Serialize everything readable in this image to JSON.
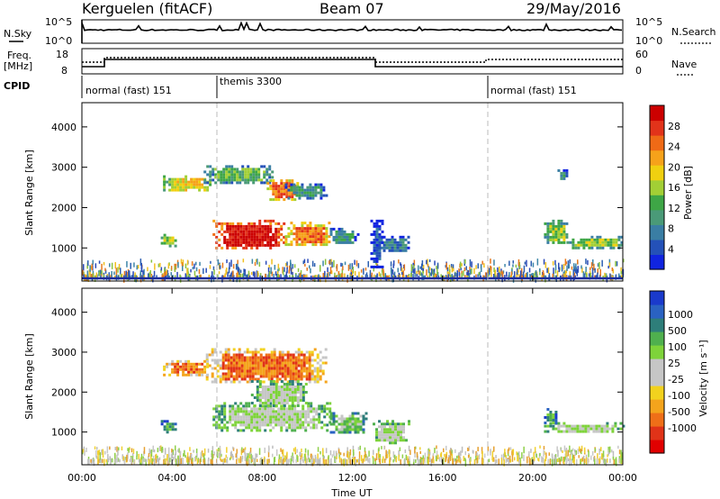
{
  "header": {
    "station": "Kerguelen (fitACF)",
    "beam": "Beam 07",
    "date": "29/May/2016"
  },
  "strips": {
    "nsky_label": "N.Sky",
    "nsky_ticks": [
      "10^5",
      "10^0"
    ],
    "nsearch_label": "N.Search",
    "nsearch_ticks": [
      "10^5",
      "10^0"
    ],
    "freq_label": "Freq.",
    "freq_unit": "[MHz]",
    "freq_ticks": [
      "18",
      "8"
    ],
    "nave_label": "Nave",
    "nave_ticks": [
      "60",
      "0"
    ],
    "cpid_label": "CPID",
    "cpid_segments": [
      {
        "label": "normal (fast) 151",
        "start_h": 0,
        "end_h": 6
      },
      {
        "label": "themis 3300",
        "start_h": 6,
        "end_h": 18
      },
      {
        "label": "normal (fast) 151",
        "start_h": 18,
        "end_h": 24
      }
    ]
  },
  "chart_data": [
    {
      "type": "heatmap",
      "name": "power-panel",
      "ylabel": "Slant Range [km]",
      "xlim": [
        0,
        24
      ],
      "ylim": [
        180,
        4600
      ],
      "yticks": [
        1000,
        2000,
        3000,
        4000
      ],
      "colorbar": {
        "label": "Power [dB]",
        "ticks": [
          "4",
          "8",
          "12",
          "16",
          "20",
          "24",
          "28"
        ],
        "colors": [
          "#1024e0",
          "#2451b8",
          "#3a7ea4",
          "#4a9a78",
          "#3ea646",
          "#a2cf35",
          "#f0d010",
          "#f6a21a",
          "#ef6a16",
          "#e2331a",
          "#cc0000"
        ]
      },
      "regions": [
        {
          "t0": 3.5,
          "t1": 4.1,
          "r0": 1050,
          "r1": 1350,
          "level": 5
        },
        {
          "t0": 3.6,
          "t1": 5.7,
          "r0": 2400,
          "r1": 2800,
          "level": 6
        },
        {
          "t0": 5.4,
          "t1": 8.5,
          "r0": 2600,
          "r1": 3050,
          "level": 4
        },
        {
          "t0": 8.2,
          "t1": 9.6,
          "r0": 2200,
          "r1": 2700,
          "level": 8
        },
        {
          "t0": 9.0,
          "t1": 10.8,
          "r0": 2250,
          "r1": 2600,
          "level": 3
        },
        {
          "t0": 5.8,
          "t1": 9.0,
          "r0": 1000,
          "r1": 1700,
          "level": 10
        },
        {
          "t0": 9.0,
          "t1": 11.0,
          "r0": 1050,
          "r1": 1650,
          "level": 8
        },
        {
          "t0": 11.0,
          "t1": 12.2,
          "r0": 1100,
          "r1": 1500,
          "level": 3
        },
        {
          "t0": 13.0,
          "t1": 14.5,
          "r0": 900,
          "r1": 1300,
          "level": 2
        },
        {
          "t0": 12.8,
          "t1": 13.3,
          "r0": 500,
          "r1": 1700,
          "level": 1
        },
        {
          "t0": 20.5,
          "t1": 21.5,
          "r0": 1100,
          "r1": 1700,
          "level": 5
        },
        {
          "t0": 21.5,
          "t1": 24.0,
          "r0": 1000,
          "r1": 1300,
          "level": 5
        },
        {
          "t0": 21.1,
          "t1": 21.5,
          "r0": 2700,
          "r1": 2950,
          "level": 3
        }
      ]
    },
    {
      "type": "heatmap",
      "name": "velocity-panel",
      "ylabel": "Slant Range [km]",
      "xlabel": "Time UT",
      "xlim": [
        0,
        24
      ],
      "ylim": [
        180,
        4600
      ],
      "yticks": [
        1000,
        2000,
        3000,
        4000
      ],
      "xticks": [
        "00:00",
        "04:00",
        "08:00",
        "12:00",
        "16:00",
        "20:00",
        "00:00"
      ],
      "colorbar": {
        "label": "Velocity [m s⁻¹]",
        "ticks": [
          "1000",
          "500",
          "100",
          "25",
          "-25",
          "-100",
          "-500",
          "-1000"
        ],
        "colors": [
          "#1a3acc",
          "#2a62c2",
          "#2e7e7a",
          "#4fb04e",
          "#7ed33a",
          "#c6c6c6",
          "#c6c6c6",
          "#f2d21e",
          "#f4a41c",
          "#ef6f18",
          "#e03318",
          "#e10000"
        ]
      },
      "regions": [
        {
          "t0": 3.5,
          "t1": 4.1,
          "r0": 1000,
          "r1": 1300,
          "level": 3
        },
        {
          "t0": 5.5,
          "t1": 10.8,
          "r0": 2250,
          "r1": 3100,
          "level": 9
        },
        {
          "t0": 3.6,
          "t1": 5.6,
          "r0": 2450,
          "r1": 2800,
          "level": 9
        },
        {
          "t0": 5.8,
          "t1": 11.0,
          "r0": 1050,
          "r1": 1750,
          "level": 5
        },
        {
          "t0": 7.5,
          "t1": 10.0,
          "r0": 1650,
          "r1": 2300,
          "level": 5
        },
        {
          "t0": 11.0,
          "t1": 12.6,
          "r0": 1000,
          "r1": 1500,
          "level": 4
        },
        {
          "t0": 12.9,
          "t1": 14.5,
          "r0": 700,
          "r1": 1300,
          "level": 5
        },
        {
          "t0": 20.5,
          "t1": 24.0,
          "r0": 1000,
          "r1": 1250,
          "level": 5
        },
        {
          "t0": 20.5,
          "t1": 21.0,
          "r0": 1200,
          "r1": 1600,
          "level": 3
        }
      ]
    }
  ]
}
